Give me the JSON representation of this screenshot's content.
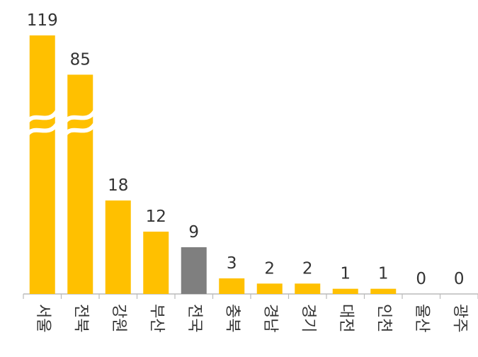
{
  "chart_data": {
    "type": "bar",
    "categories": [
      "서울",
      "전북",
      "강원",
      "부산",
      "전국",
      "충북",
      "경남",
      "경기",
      "대전",
      "인천",
      "울산",
      "광주"
    ],
    "values": [
      119,
      85,
      18,
      12,
      9,
      3,
      2,
      2,
      1,
      1,
      0,
      0
    ],
    "colors": [
      "#ffc000",
      "#ffc000",
      "#ffc000",
      "#ffc000",
      "#7f7f7f",
      "#ffc000",
      "#ffc000",
      "#ffc000",
      "#ffc000",
      "#ffc000",
      "#ffc000",
      "#ffc000"
    ]
  }
}
